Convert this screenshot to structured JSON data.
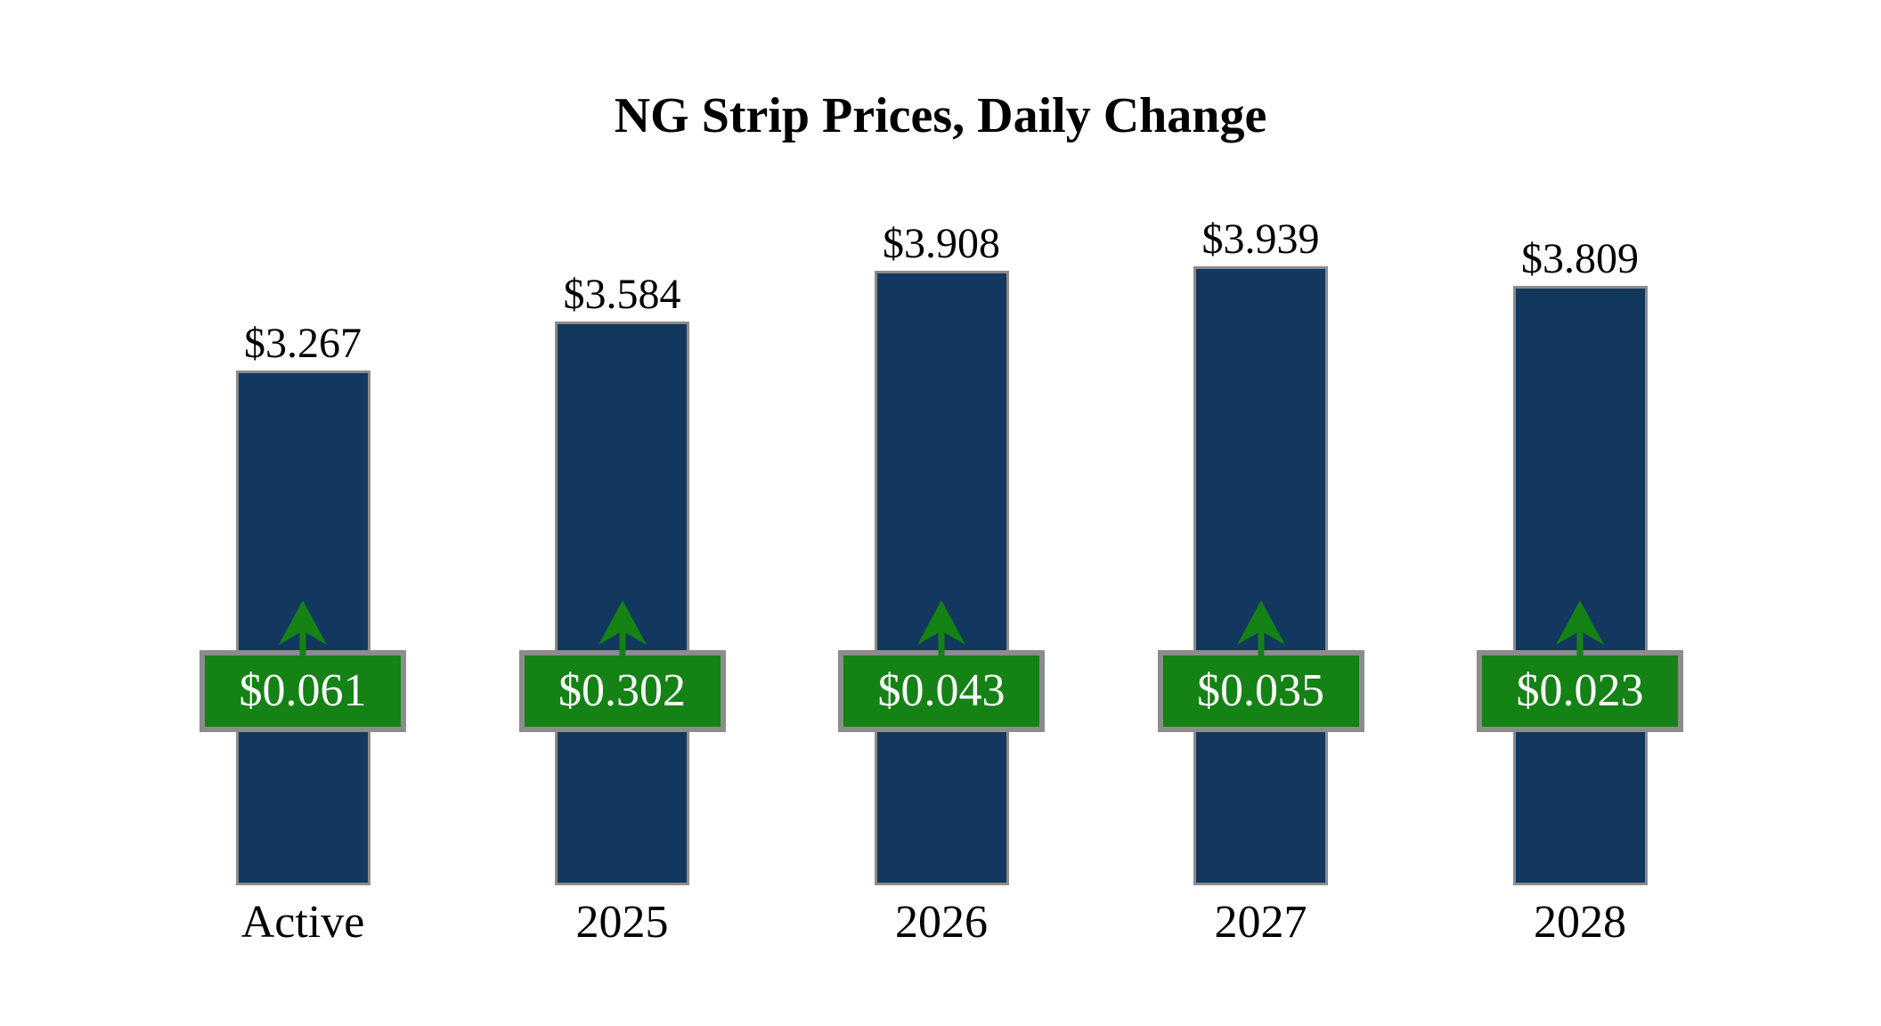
{
  "title": "NG Strip Prices, Daily Change",
  "chart_data": {
    "type": "bar",
    "title": "NG Strip Prices, Daily Change",
    "categories": [
      "Active",
      "2025",
      "2026",
      "2027",
      "2028"
    ],
    "series": [
      {
        "name": "strip_price",
        "values": [
          3.267,
          3.584,
          3.908,
          3.939,
          3.809
        ]
      },
      {
        "name": "daily_change",
        "values": [
          0.061,
          0.302,
          0.043,
          0.035,
          0.023
        ]
      }
    ],
    "price_labels": [
      "$3.267",
      "$3.584",
      "$3.908",
      "$3.939",
      "$3.809"
    ],
    "change_labels": [
      "$0.061",
      "$0.302",
      "$0.043",
      "$0.035",
      "$0.023"
    ],
    "change_direction": "up",
    "xlabel": "",
    "ylabel": "",
    "ylim": [
      0,
      4.2
    ],
    "grid": false,
    "legend": false,
    "colors": {
      "bar_fill": "#12385F",
      "bar_border": "#8C8C8C",
      "badge_fill": "#148214",
      "badge_border": "#8C8C8C",
      "badge_text": "#FFFFFF",
      "arrow": "#148214",
      "label_text": "#000000",
      "background": "#FFFFFF"
    }
  }
}
